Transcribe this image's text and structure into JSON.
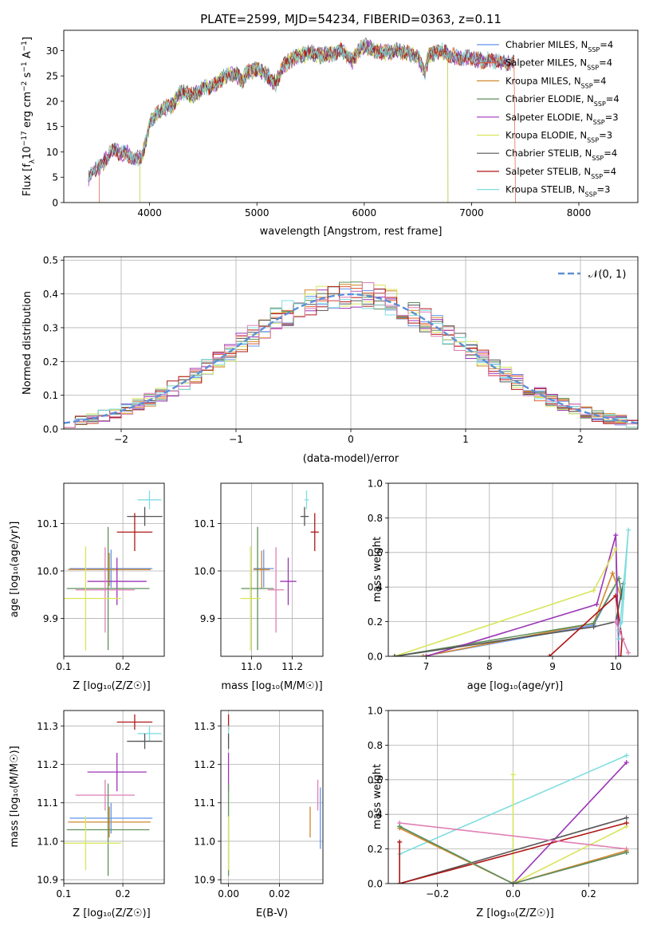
{
  "figure_title": "PLATE=2599, MJD=54234, FIBERID=0363, z=0.11",
  "colors": {
    "chabrier_miles": "#6495ed",
    "salpeter_miles": "#e0603a",
    "kroupa_miles": "#d2872c",
    "chabrier_elodie": "#5f8f5a",
    "salpeter_elodie": "#9b34b5",
    "kroupa_elodie": "#d8e55a",
    "chabrier_stelib": "#555555",
    "salpeter_stelib": "#b01616",
    "kroupa_stelib": "#7fdde0",
    "pink": "#e07fb5",
    "gauss": "#5b8fd6",
    "grid": "#b0b0b0"
  },
  "legend_spectrum": [
    {
      "label": "Chabrier MILES, N",
      "sub": "SSP",
      "value": "=4",
      "color": "#6495ed"
    },
    {
      "label": "Salpeter MILES, N",
      "sub": "SSP",
      "value": "=4",
      "color": "#e0603a"
    },
    {
      "label": "Kroupa MILES, N",
      "sub": "SSP",
      "value": "=4",
      "color": "#d2872c"
    },
    {
      "label": "Chabrier ELODIE, N",
      "sub": "SSP",
      "value": "=4",
      "color": "#5f8f5a"
    },
    {
      "label": "Salpeter ELODIE, N",
      "sub": "SSP",
      "value": "=3",
      "color": "#9b34b5"
    },
    {
      "label": "Kroupa ELODIE, N",
      "sub": "SSP",
      "value": "=3",
      "color": "#d8e55a"
    },
    {
      "label": "Chabrier STELIB, N",
      "sub": "SSP",
      "value": "=4",
      "color": "#555555"
    },
    {
      "label": "Salpeter STELIB, N",
      "sub": "SSP",
      "value": "=4",
      "color": "#b01616"
    },
    {
      "label": "Kroupa STELIB, N",
      "sub": "SSP",
      "value": "=3",
      "color": "#7fdde0"
    }
  ],
  "chart_data": [
    {
      "id": "spectrum",
      "type": "line",
      "xlabel": "wavelength [Angstrom, rest frame]",
      "ylabel_parts": [
        "Flux [f",
        "λ",
        "10",
        "−17",
        " erg cm",
        "−2",
        " s",
        "−1",
        " A",
        "−1",
        "]"
      ],
      "xlim": [
        3200,
        8550
      ],
      "ylim": [
        0,
        34
      ],
      "xticks": [
        4000,
        5000,
        6000,
        7000,
        8000
      ],
      "yticks": [
        0,
        5,
        10,
        15,
        20,
        25,
        30
      ],
      "xticklabels": [
        "4000",
        "5000",
        "6000",
        "7000",
        "8000"
      ],
      "yticklabels": [
        "0",
        "5",
        "10",
        "15",
        "20",
        "25",
        "30"
      ],
      "grid": false,
      "legend_position": "upper right",
      "data_x": [
        3430,
        3480,
        3530,
        3600,
        3680,
        3730,
        3780,
        3850,
        3930,
        3980,
        4000,
        4050,
        4120,
        4200,
        4300,
        4400,
        4500,
        4600,
        4700,
        4800,
        4860,
        4900,
        5000,
        5100,
        5175,
        5250,
        5300,
        5400,
        5500,
        5600,
        5700,
        5800,
        5890,
        5950,
        6000,
        6100,
        6200,
        6300,
        6400,
        6500,
        6563,
        6600,
        6700,
        6800,
        6900,
        7000,
        7100,
        7200,
        7300,
        7400
      ],
      "data_y": [
        5,
        6.5,
        7,
        9,
        10.5,
        9.5,
        10,
        8.5,
        9,
        13,
        16,
        17,
        18.5,
        19,
        22,
        21,
        22.5,
        23,
        25,
        25.5,
        24,
        25.5,
        26.5,
        25,
        23.5,
        27,
        28,
        29,
        29.5,
        29,
        29.5,
        30,
        28,
        30,
        31,
        30,
        29.5,
        30,
        29.5,
        29,
        25,
        29,
        30,
        29,
        28.5,
        28.5,
        28,
        28,
        27.5,
        27.5
      ],
      "dropouts": [
        {
          "model": "salpeter_miles",
          "start": 3530,
          "end": 7410
        },
        {
          "model": "kroupa_elodie",
          "start": 3910,
          "end": 6780
        },
        {
          "model": "chabrier_elodie",
          "start": 3910,
          "end": 6780
        }
      ]
    },
    {
      "id": "residuals",
      "type": "histogram",
      "xlabel": "(data-model)/error",
      "ylabel": "Normed distribution",
      "xlim": [
        -2.5,
        2.5
      ],
      "ylim": [
        0,
        0.51
      ],
      "xticks": [
        -2,
        -1,
        0,
        1,
        2
      ],
      "xticklabels": [
        "−2",
        "−1",
        "0",
        "1",
        "2"
      ],
      "yticks": [
        0,
        0.1,
        0.2,
        0.3,
        0.4,
        0.5
      ],
      "yticklabels": [
        "0.0",
        "0.1",
        "0.2",
        "0.3",
        "0.4",
        "0.5"
      ],
      "grid": true,
      "legend_label": "𝒩(0, 1)",
      "legend_position": "upper right",
      "bin_width": 0.1,
      "bin_start": -2.5,
      "bin_count": 50
    },
    {
      "id": "age_vs_Z",
      "type": "errorbar",
      "xlabel": "Z [log₁₀(Z/Z☉)]",
      "ylabel": "age  [log₁₀(age/yr)]",
      "xlim": [
        0.1,
        0.27
      ],
      "ylim": [
        9.82,
        10.185
      ],
      "xticks": [
        0.1,
        0.2
      ],
      "xticklabels": [
        "0.1",
        "0.2"
      ],
      "yticks": [
        9.9,
        10.0,
        10.1
      ],
      "yticklabels": [
        "9.9",
        "10.0",
        "10.1"
      ],
      "grid": true,
      "points": [
        {
          "model": "kroupa_stelib",
          "x": 0.245,
          "y": 10.15,
          "xerr": 0.02,
          "yerr": 0.02
        },
        {
          "model": "chabrier_stelib",
          "x": 0.237,
          "y": 10.115,
          "xerr": 0.03,
          "yerr": 0.02
        },
        {
          "model": "salpeter_stelib",
          "x": 0.22,
          "y": 10.082,
          "xerr": 0.03,
          "yerr": 0.04
        },
        {
          "model": "chabrier_miles",
          "x": 0.18,
          "y": 10.005,
          "xerr": 0.07,
          "yerr": 0.04
        },
        {
          "model": "kroupa_miles",
          "x": 0.177,
          "y": 10.003,
          "xerr": 0.07,
          "yerr": 0.035
        },
        {
          "model": "salpeter_elodie",
          "x": 0.19,
          "y": 9.978,
          "xerr": 0.05,
          "yerr": 0.05
        },
        {
          "model": "chabrier_elodie",
          "x": 0.175,
          "y": 9.963,
          "xerr": 0.07,
          "yerr": 0.13
        },
        {
          "model": "pink",
          "x": 0.17,
          "y": 9.96,
          "xerr": 0.05,
          "yerr": 0.09
        },
        {
          "model": "kroupa_elodie",
          "x": 0.137,
          "y": 9.942,
          "xerr": 0.06,
          "yerr": 0.11
        }
      ]
    },
    {
      "id": "age_vs_mass",
      "type": "errorbar",
      "xlabel": "mass [log₁₀(M/M☉)]",
      "ylabel": "",
      "xlim": [
        10.85,
        11.35
      ],
      "ylim": [
        9.82,
        10.185
      ],
      "xticks": [
        11.0,
        11.2
      ],
      "xticklabels": [
        "11.0",
        "11.2"
      ],
      "yticks": [
        9.9,
        10.0,
        10.1
      ],
      "yticklabels": [
        "9.9",
        "10.0",
        "10.1"
      ],
      "grid": true,
      "points": [
        {
          "model": "kroupa_stelib",
          "x": 11.27,
          "y": 10.15,
          "xerr": 0.01,
          "yerr": 0.02
        },
        {
          "model": "chabrier_stelib",
          "x": 11.26,
          "y": 10.115,
          "xerr": 0.02,
          "yerr": 0.02
        },
        {
          "model": "salpeter_stelib",
          "x": 11.31,
          "y": 10.082,
          "xerr": 0.02,
          "yerr": 0.04
        },
        {
          "model": "chabrier_miles",
          "x": 11.06,
          "y": 10.005,
          "xerr": 0.05,
          "yerr": 0.04
        },
        {
          "model": "kroupa_miles",
          "x": 11.05,
          "y": 10.003,
          "xerr": 0.04,
          "yerr": 0.04
        },
        {
          "model": "salpeter_elodie",
          "x": 11.18,
          "y": 9.978,
          "xerr": 0.04,
          "yerr": 0.05
        },
        {
          "model": "chabrier_elodie",
          "x": 11.03,
          "y": 9.963,
          "xerr": 0.08,
          "yerr": 0.13
        },
        {
          "model": "pink",
          "x": 11.12,
          "y": 9.96,
          "xerr": 0.04,
          "yerr": 0.09
        },
        {
          "model": "kroupa_elodie",
          "x": 10.995,
          "y": 9.942,
          "xerr": 0.05,
          "yerr": 0.11
        }
      ]
    },
    {
      "id": "weight_vs_age",
      "type": "line",
      "xlabel": "age  [log₁₀(age/yr)]",
      "ylabel": "mass weight",
      "xlim": [
        6.4,
        10.35
      ],
      "ylim": [
        0,
        1.0
      ],
      "xticks": [
        7,
        8,
        9,
        10
      ],
      "xticklabels": [
        "7",
        "8",
        "9",
        "10"
      ],
      "yticks": [
        0,
        0.2,
        0.4,
        0.6,
        0.8,
        1.0
      ],
      "yticklabels": [
        "0.0",
        "0.2",
        "0.4",
        "0.6",
        "0.8",
        "1.0"
      ],
      "grid": true,
      "series": [
        {
          "model": "chabrier_miles",
          "x": [
            6.95,
            9.65,
            10.05,
            10.1
          ],
          "y": [
            0,
            0.18,
            0.45,
            0.35
          ]
        },
        {
          "model": "kroupa_miles",
          "x": [
            6.95,
            9.65,
            9.95,
            10.1
          ],
          "y": [
            0,
            0.19,
            0.48,
            0.33
          ]
        },
        {
          "model": "chabrier_elodie",
          "x": [
            6.5,
            9.65,
            10.05,
            10.1
          ],
          "y": [
            0,
            0.19,
            0.45,
            0.34
          ]
        },
        {
          "model": "salpeter_elodie",
          "x": [
            7.0,
            9.7,
            10.0,
            10.05
          ],
          "y": [
            0,
            0.3,
            0.7,
            0.0
          ]
        },
        {
          "model": "kroupa_elodie",
          "x": [
            6.5,
            9.65,
            10.0
          ],
          "y": [
            0.0,
            0.38,
            0.62
          ]
        },
        {
          "model": "chabrier_stelib",
          "x": [
            6.5,
            9.65,
            10.0,
            10.12
          ],
          "y": [
            0,
            0.17,
            0.2,
            0.42
          ]
        },
        {
          "model": "salpeter_stelib",
          "x": [
            8.95,
            10.0,
            10.1,
            10.08
          ],
          "y": [
            0,
            0.35,
            0.1,
            0.0
          ]
        },
        {
          "model": "kroupa_stelib",
          "x": [
            10.05,
            10.1,
            10.2,
            10.05
          ],
          "y": [
            0.15,
            0.2,
            0.73,
            0.1
          ]
        },
        {
          "model": "pink",
          "x": [
            10.0,
            10.2
          ],
          "y": [
            0.2,
            0.02
          ]
        }
      ]
    },
    {
      "id": "mass_vs_Z",
      "type": "errorbar",
      "xlabel": "Z [log₁₀(Z/Z☉)]",
      "ylabel": "mass [log₁₀(M/M☉)]",
      "xlim": [
        0.1,
        0.27
      ],
      "ylim": [
        10.89,
        11.34
      ],
      "xticks": [
        0.1,
        0.2
      ],
      "xticklabels": [
        "0.1",
        "0.2"
      ],
      "yticks": [
        10.9,
        11.0,
        11.1,
        11.2,
        11.3
      ],
      "yticklabels": [
        "10.9",
        "11.0",
        "11.1",
        "11.2",
        "11.3"
      ],
      "grid": true,
      "points": [
        {
          "model": "salpeter_stelib",
          "x": 0.22,
          "y": 11.31,
          "xerr": 0.03,
          "yerr": 0.02
        },
        {
          "model": "kroupa_stelib",
          "x": 0.245,
          "y": 11.28,
          "xerr": 0.02,
          "yerr": 0.02
        },
        {
          "model": "chabrier_stelib",
          "x": 0.237,
          "y": 11.26,
          "xerr": 0.03,
          "yerr": 0.02
        },
        {
          "model": "salpeter_elodie",
          "x": 0.19,
          "y": 11.18,
          "xerr": 0.05,
          "yerr": 0.05
        },
        {
          "model": "pink",
          "x": 0.17,
          "y": 11.12,
          "xerr": 0.05,
          "yerr": 0.04
        },
        {
          "model": "chabrier_miles",
          "x": 0.18,
          "y": 11.06,
          "xerr": 0.07,
          "yerr": 0.04
        },
        {
          "model": "kroupa_miles",
          "x": 0.177,
          "y": 11.05,
          "xerr": 0.07,
          "yerr": 0.04
        },
        {
          "model": "chabrier_elodie",
          "x": 0.175,
          "y": 11.03,
          "xerr": 0.07,
          "yerr": 0.12
        },
        {
          "model": "kroupa_elodie",
          "x": 0.137,
          "y": 10.995,
          "xerr": 0.06,
          "yerr": 0.07
        }
      ]
    },
    {
      "id": "mass_vs_ebv",
      "type": "errorbar",
      "xlabel": "E(B-V)",
      "ylabel": "",
      "xlim": [
        -0.003,
        0.037
      ],
      "ylim": [
        10.89,
        11.34
      ],
      "xticks": [
        0.0,
        0.02
      ],
      "xticklabels": [
        "0.00",
        "0.02"
      ],
      "yticks": [
        10.9,
        11.0,
        11.1,
        11.2,
        11.3
      ],
      "yticklabels": [
        "10.9",
        "11.0",
        "11.1",
        "11.2",
        "11.3"
      ],
      "grid": true,
      "points": [
        {
          "model": "salpeter_stelib",
          "x": 0.0,
          "y": 11.31,
          "xerr": 0,
          "yerr": 0.02
        },
        {
          "model": "kroupa_stelib",
          "x": 0.0,
          "y": 11.28,
          "xerr": 0,
          "yerr": 0.02
        },
        {
          "model": "chabrier_stelib",
          "x": 0.0,
          "y": 11.26,
          "xerr": 0,
          "yerr": 0.02
        },
        {
          "model": "salpeter_elodie",
          "x": 0.0,
          "y": 11.18,
          "xerr": 0,
          "yerr": 0.05
        },
        {
          "model": "chabrier_elodie",
          "x": 0.0,
          "y": 11.03,
          "xerr": 0,
          "yerr": 0.12
        },
        {
          "model": "kroupa_elodie",
          "x": 0.0,
          "y": 10.995,
          "xerr": 0,
          "yerr": 0.07
        },
        {
          "model": "pink",
          "x": 0.035,
          "y": 11.12,
          "xerr": 0,
          "yerr": 0.04
        },
        {
          "model": "chabrier_miles",
          "x": 0.036,
          "y": 11.06,
          "xerr": 0,
          "yerr": 0.08
        },
        {
          "model": "kroupa_miles",
          "x": 0.032,
          "y": 11.05,
          "xerr": 0,
          "yerr": 0.04
        }
      ]
    },
    {
      "id": "weight_vs_Z",
      "type": "line",
      "xlabel": "Z [log₁₀(Z/Z☉)]",
      "ylabel": "mass weight",
      "xlim": [
        -0.33,
        0.33
      ],
      "ylim": [
        0,
        1.0
      ],
      "xticks": [
        -0.2,
        0.0,
        0.2
      ],
      "xticklabels": [
        "−0.2",
        "0.0",
        "0.2"
      ],
      "yticks": [
        0,
        0.2,
        0.4,
        0.6,
        0.8,
        1.0
      ],
      "yticklabels": [
        "0.0",
        "0.2",
        "0.4",
        "0.6",
        "0.8",
        "1.0"
      ],
      "grid": true,
      "series": [
        {
          "model": "kroupa_stelib",
          "x": [
            -0.3,
            0.3
          ],
          "y": [
            0.17,
            0.74
          ]
        },
        {
          "model": "salpeter_elodie",
          "x": [
            0.0,
            0.3
          ],
          "y": [
            0.0,
            0.7
          ]
        },
        {
          "model": "kroupa_elodie",
          "x": [
            0.0,
            0.0,
            0.3
          ],
          "y": [
            0.63,
            0.0,
            0.33
          ]
        },
        {
          "model": "chabrier_stelib",
          "x": [
            -0.3,
            0.3
          ],
          "y": [
            0.0,
            0.38
          ]
        },
        {
          "model": "salpeter_stelib",
          "x": [
            -0.3,
            -0.3,
            0.3
          ],
          "y": [
            0.24,
            0.0,
            0.35
          ]
        },
        {
          "model": "pink",
          "x": [
            -0.3,
            0.3
          ],
          "y": [
            0.35,
            0.2
          ]
        },
        {
          "model": "chabrier_miles",
          "x": [
            -0.3,
            0.0,
            0.3
          ],
          "y": [
            0.33,
            0.0,
            0.18
          ]
        },
        {
          "model": "kroupa_miles",
          "x": [
            -0.3,
            0.0,
            0.3
          ],
          "y": [
            0.32,
            0.0,
            0.19
          ]
        },
        {
          "model": "chabrier_elodie",
          "x": [
            -0.3,
            0.0,
            0.3
          ],
          "y": [
            0.33,
            0.0,
            0.18
          ]
        }
      ]
    }
  ]
}
